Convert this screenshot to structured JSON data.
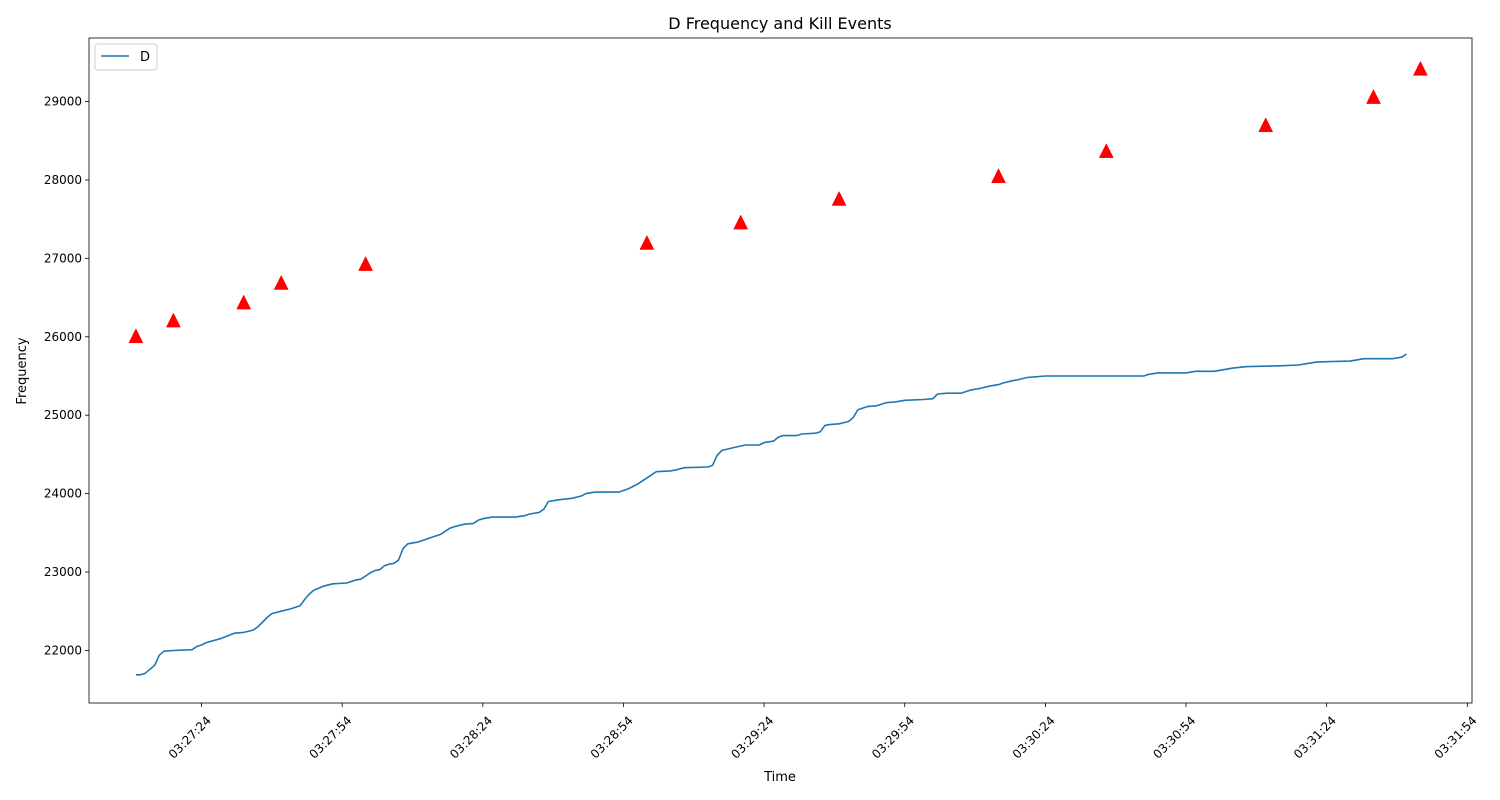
{
  "chart_data": {
    "type": "line",
    "title": "D Frequency and Kill Events",
    "xlabel": "Time",
    "ylabel": "Frequency",
    "x_axis": "time",
    "xlim": [
      "03:27:00",
      "03:31:55"
    ],
    "ylim": [
      21330,
      29810
    ],
    "x_ticks": [
      "03:27:24",
      "03:27:54",
      "03:28:24",
      "03:28:54",
      "03:29:24",
      "03:29:54",
      "03:30:24",
      "03:30:54",
      "03:31:24",
      "03:31:54"
    ],
    "y_ticks": [
      22000,
      23000,
      24000,
      25000,
      26000,
      27000,
      28000,
      29000
    ],
    "grid": false,
    "legend": {
      "placement": "top-left",
      "entries": [
        "D"
      ]
    },
    "series": [
      {
        "name": "D",
        "style": "line",
        "color": "#1f77b4",
        "points": [
          [
            "03:27:10",
            21690
          ],
          [
            "03:27:11",
            21690
          ],
          [
            "03:27:12",
            21710
          ],
          [
            "03:27:13",
            21760
          ],
          [
            "03:27:14",
            21810
          ],
          [
            "03:27:15",
            21940
          ],
          [
            "03:27:16",
            21990
          ],
          [
            "03:27:18",
            22000
          ],
          [
            "03:27:22",
            22010
          ],
          [
            "03:27:23",
            22050
          ],
          [
            "03:27:24",
            22070
          ],
          [
            "03:27:25",
            22100
          ],
          [
            "03:27:28",
            22150
          ],
          [
            "03:27:31",
            22220
          ],
          [
            "03:27:33",
            22230
          ],
          [
            "03:27:35",
            22260
          ],
          [
            "03:27:36",
            22300
          ],
          [
            "03:27:38",
            22420
          ],
          [
            "03:27:39",
            22470
          ],
          [
            "03:27:41",
            22500
          ],
          [
            "03:27:43",
            22530
          ],
          [
            "03:27:45",
            22570
          ],
          [
            "03:27:46",
            22650
          ],
          [
            "03:27:47",
            22720
          ],
          [
            "03:27:48",
            22770
          ],
          [
            "03:27:50",
            22820
          ],
          [
            "03:27:52",
            22850
          ],
          [
            "03:27:55",
            22860
          ],
          [
            "03:27:57",
            22900
          ],
          [
            "03:27:58",
            22910
          ],
          [
            "03:27:59",
            22950
          ],
          [
            "03:28:00",
            22990
          ],
          [
            "03:28:01",
            23020
          ],
          [
            "03:28:02",
            23030
          ],
          [
            "03:28:03",
            23080
          ],
          [
            "03:28:04",
            23100
          ],
          [
            "03:28:05",
            23110
          ],
          [
            "03:28:06",
            23150
          ],
          [
            "03:28:07",
            23300
          ],
          [
            "03:28:08",
            23360
          ],
          [
            "03:28:10",
            23380
          ],
          [
            "03:28:12",
            23420
          ],
          [
            "03:28:13",
            23440
          ],
          [
            "03:28:15",
            23480
          ],
          [
            "03:28:17",
            23560
          ],
          [
            "03:28:18",
            23580
          ],
          [
            "03:28:20",
            23610
          ],
          [
            "03:28:22",
            23620
          ],
          [
            "03:28:23",
            23660
          ],
          [
            "03:28:24",
            23680
          ],
          [
            "03:28:26",
            23700
          ],
          [
            "03:28:31",
            23700
          ],
          [
            "03:28:33",
            23720
          ],
          [
            "03:28:34",
            23740
          ],
          [
            "03:28:36",
            23760
          ],
          [
            "03:28:37",
            23800
          ],
          [
            "03:28:38",
            23900
          ],
          [
            "03:28:40",
            23920
          ],
          [
            "03:28:43",
            23940
          ],
          [
            "03:28:45",
            23970
          ],
          [
            "03:28:46",
            24000
          ],
          [
            "03:28:48",
            24020
          ],
          [
            "03:28:53",
            24020
          ],
          [
            "03:28:55",
            24060
          ],
          [
            "03:28:57",
            24120
          ],
          [
            "03:28:59",
            24200
          ],
          [
            "03:29:00",
            24240
          ],
          [
            "03:29:01",
            24280
          ],
          [
            "03:29:04",
            24290
          ],
          [
            "03:29:05",
            24300
          ],
          [
            "03:29:07",
            24330
          ],
          [
            "03:29:12",
            24340
          ],
          [
            "03:29:13",
            24360
          ],
          [
            "03:29:14",
            24490
          ],
          [
            "03:29:15",
            24550
          ],
          [
            "03:29:17",
            24580
          ],
          [
            "03:29:20",
            24620
          ],
          [
            "03:29:23",
            24620
          ],
          [
            "03:29:24",
            24650
          ],
          [
            "03:29:26",
            24670
          ],
          [
            "03:29:27",
            24720
          ],
          [
            "03:29:28",
            24740
          ],
          [
            "03:29:31",
            24740
          ],
          [
            "03:29:32",
            24760
          ],
          [
            "03:29:35",
            24770
          ],
          [
            "03:29:36",
            24790
          ],
          [
            "03:29:37",
            24870
          ],
          [
            "03:29:38",
            24880
          ],
          [
            "03:29:40",
            24890
          ],
          [
            "03:29:42",
            24920
          ],
          [
            "03:29:43",
            24970
          ],
          [
            "03:29:44",
            25070
          ],
          [
            "03:29:46",
            25110
          ],
          [
            "03:29:48",
            25120
          ],
          [
            "03:29:50",
            25160
          ],
          [
            "03:29:52",
            25170
          ],
          [
            "03:29:54",
            25190
          ],
          [
            "03:29:58",
            25200
          ],
          [
            "03:30:00",
            25210
          ],
          [
            "03:30:01",
            25270
          ],
          [
            "03:30:03",
            25280
          ],
          [
            "03:30:06",
            25280
          ],
          [
            "03:30:08",
            25320
          ],
          [
            "03:30:10",
            25340
          ],
          [
            "03:30:12",
            25370
          ],
          [
            "03:30:14",
            25390
          ],
          [
            "03:30:15",
            25410
          ],
          [
            "03:30:17",
            25440
          ],
          [
            "03:30:18",
            25450
          ],
          [
            "03:30:20",
            25480
          ],
          [
            "03:30:24",
            25500
          ],
          [
            "03:30:45",
            25500
          ],
          [
            "03:30:46",
            25520
          ],
          [
            "03:30:48",
            25540
          ],
          [
            "03:30:54",
            25540
          ],
          [
            "03:30:56",
            25560
          ],
          [
            "03:31:00",
            25560
          ],
          [
            "03:31:02",
            25580
          ],
          [
            "03:31:04",
            25600
          ],
          [
            "03:31:07",
            25620
          ],
          [
            "03:31:14",
            25630
          ],
          [
            "03:31:18",
            25640
          ],
          [
            "03:31:20",
            25660
          ],
          [
            "03:31:22",
            25680
          ],
          [
            "03:31:29",
            25690
          ],
          [
            "03:31:32",
            25720
          ],
          [
            "03:31:38",
            25720
          ],
          [
            "03:31:40",
            25740
          ],
          [
            "03:31:41",
            25780
          ]
        ]
      },
      {
        "style": "marker",
        "marker": "triangle-up",
        "color": "#ff0000",
        "points": [
          [
            "03:27:10",
            26000
          ],
          [
            "03:27:18",
            26200
          ],
          [
            "03:27:33",
            26430
          ],
          [
            "03:27:41",
            26680
          ],
          [
            "03:27:59",
            26920
          ],
          [
            "03:28:59",
            27190
          ],
          [
            "03:29:19",
            27450
          ],
          [
            "03:29:40",
            27750
          ],
          [
            "03:30:14",
            28040
          ],
          [
            "03:30:37",
            28360
          ],
          [
            "03:31:11",
            28690
          ],
          [
            "03:31:34",
            29050
          ],
          [
            "03:31:44",
            29410
          ]
        ]
      }
    ]
  }
}
